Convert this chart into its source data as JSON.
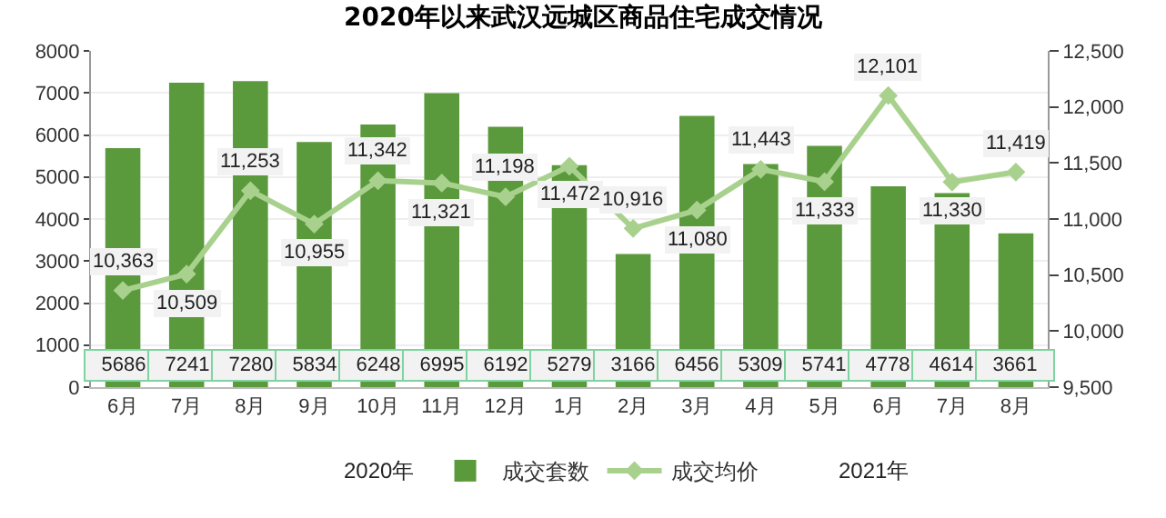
{
  "chart_data": {
    "type": "bar",
    "title": "2020年以来武汉远城区商品住宅成交情况",
    "categories": [
      "6月",
      "7月",
      "8月",
      "9月",
      "10月",
      "11月",
      "12月",
      "1月",
      "2月",
      "3月",
      "4月",
      "5月",
      "6月",
      "7月",
      "8月"
    ],
    "series": [
      {
        "name": "成交套数",
        "color": "#5b9a3c",
        "values": [
          5686,
          7241,
          7280,
          5834,
          6248,
          6995,
          6192,
          5279,
          3166,
          6456,
          5309,
          5741,
          4778,
          4614,
          3661
        ]
      },
      {
        "name": "成交均价",
        "type": "line",
        "axis": "y2",
        "color": "#a9d18e",
        "marker": "diamond",
        "values": [
          10363,
          10509,
          11253,
          10955,
          11342,
          11321,
          11198,
          11472,
          10916,
          11080,
          11443,
          11333,
          12101,
          11330,
          11419
        ],
        "value_labels": [
          "10,363",
          "10,509",
          "11,253",
          "10,955",
          "11,342",
          "11,321",
          "11,198",
          "11,472",
          "10,916",
          "11,080",
          "11,443",
          "11,333",
          "12,101",
          "11,330",
          "11,419"
        ]
      }
    ],
    "ylim": [
      0,
      8000
    ],
    "yticks": [
      0,
      1000,
      2000,
      3000,
      4000,
      5000,
      6000,
      7000,
      8000
    ],
    "y2lim": [
      9500,
      12500
    ],
    "y2ticks": [
      {
        "value": 9500,
        "label": "9,500"
      },
      {
        "value": 10000,
        "label": "10,000"
      },
      {
        "value": 10500,
        "label": "10,500"
      },
      {
        "value": 11000,
        "label": "11,000"
      },
      {
        "value": 11500,
        "label": "11,500"
      },
      {
        "value": 12000,
        "label": "12,000"
      },
      {
        "value": 12500,
        "label": "12,500"
      }
    ],
    "annotations": [
      "2020年",
      "2021年"
    ],
    "data_labels": true,
    "grid": "y",
    "legend": "bottom"
  }
}
